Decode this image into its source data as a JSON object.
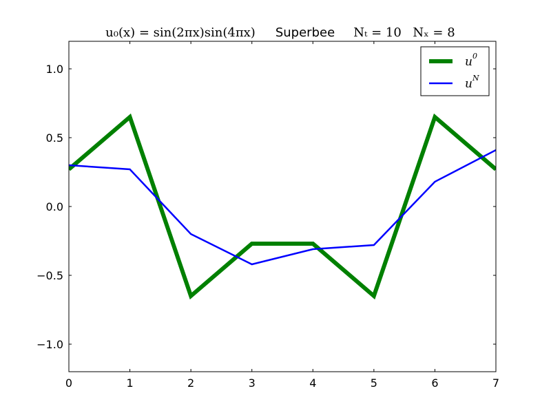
{
  "chart_data": {
    "type": "line",
    "title": {
      "formula": "u₀(x) = sin(2πx)sin(4πx)",
      "method": "Superbee",
      "nt": "Nₜ = 10",
      "nx": "Nₓ = 8"
    },
    "xlabel": "",
    "ylabel": "",
    "xlim": [
      0,
      7
    ],
    "ylim": [
      -1.2,
      1.2
    ],
    "xticks": [
      0,
      1,
      2,
      3,
      4,
      5,
      6,
      7
    ],
    "xtick_labels": [
      "0",
      "1",
      "2",
      "3",
      "4",
      "5",
      "6",
      "7"
    ],
    "yticks": [
      -1.0,
      -0.5,
      0.0,
      0.5,
      1.0
    ],
    "ytick_labels": [
      "−1.0",
      "−0.5",
      "0.0",
      "0.5",
      "1.0"
    ],
    "grid": false,
    "legend_position": "top-right",
    "series": [
      {
        "name": "u",
        "name_sup": "0",
        "color": "#008000",
        "x": [
          0,
          1,
          2,
          3,
          4,
          5,
          6,
          7
        ],
        "y": [
          0.27,
          0.65,
          -0.65,
          -0.27,
          -0.27,
          -0.65,
          0.65,
          0.27
        ]
      },
      {
        "name": "u",
        "name_sup": "N",
        "color": "#0000ff",
        "x": [
          0,
          1,
          2,
          3,
          4,
          5,
          6,
          7
        ],
        "y": [
          0.3,
          0.27,
          -0.2,
          -0.42,
          -0.31,
          -0.28,
          0.18,
          0.41
        ]
      }
    ]
  }
}
